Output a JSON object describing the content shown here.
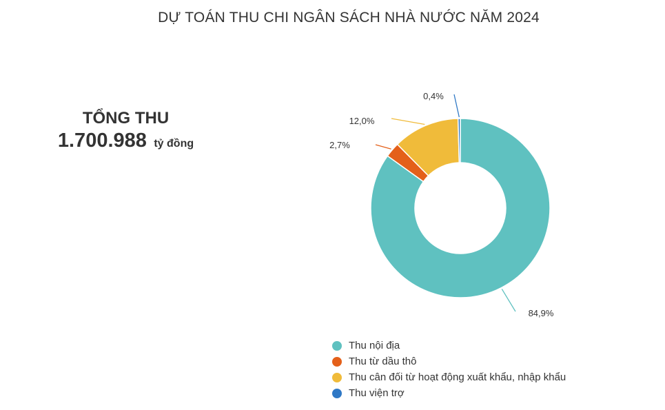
{
  "title": "DỰ TOÁN THU CHI NGÂN SÁCH NHÀ NƯỚC NĂM 2024",
  "summary": {
    "label": "TỔNG THU",
    "value": "1.700.988",
    "unit": "tỷ đồng"
  },
  "chart_data": {
    "type": "pie",
    "donut": true,
    "title": "DỰ TOÁN THU CHI NGÂN SÁCH NHÀ NƯỚC NĂM 2024",
    "legend_position": "bottom",
    "categories": [
      "Thu nội địa",
      "Thu từ dầu thô",
      "Thu cân đối từ hoạt động xuất khẩu, nhập khẩu",
      "Thu viện trợ"
    ],
    "values": [
      84.9,
      2.7,
      12.0,
      0.4
    ],
    "data_labels": [
      "84,9%",
      "2,7%",
      "12,0%",
      "0,4%"
    ],
    "colors": [
      "#5fc1c0",
      "#e4601a",
      "#f0bb3a",
      "#2f78c5"
    ]
  }
}
